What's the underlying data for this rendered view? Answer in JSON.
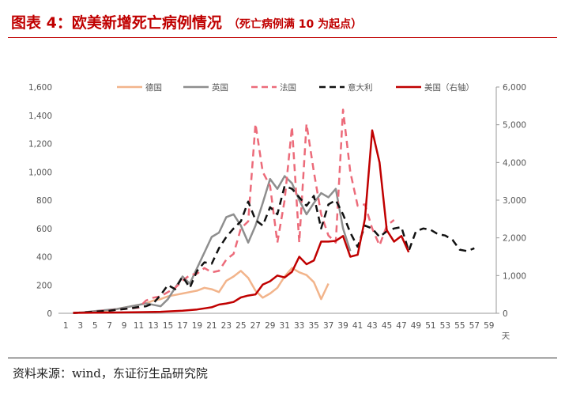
{
  "header": {
    "title": "图表 4：欧美新增死亡病例情况",
    "subtitle": "（死亡病例满 10 为起点）"
  },
  "footer": {
    "source": "资料来源：wind，东证衍生品研究院"
  },
  "chart_data": {
    "type": "line",
    "x_label_unit": "天",
    "x_ticks": [
      1,
      3,
      5,
      7,
      9,
      11,
      13,
      15,
      17,
      19,
      21,
      23,
      25,
      27,
      29,
      31,
      33,
      35,
      37,
      39,
      41,
      43,
      45,
      47,
      49,
      51,
      53,
      55,
      57,
      59
    ],
    "xlim": [
      0,
      60
    ],
    "ylim_left": [
      0,
      1600
    ],
    "ylim_right": [
      0,
      6000
    ],
    "y_ticks_left": [
      "0",
      "200",
      "400",
      "600",
      "800",
      "1,000",
      "1,200",
      "1,400",
      "1,600"
    ],
    "y_ticks_right": [
      "0",
      "1,000",
      "2,000",
      "3,000",
      "4,000",
      "5,000",
      "6,000"
    ],
    "legend_position": "top",
    "series": [
      {
        "name": "德国",
        "axis": "left",
        "color": "#f2b48b",
        "dash": "solid",
        "x": [
          2,
          3,
          4,
          5,
          6,
          7,
          8,
          9,
          10,
          11,
          12,
          13,
          14,
          15,
          16,
          17,
          18,
          19,
          20,
          21,
          22,
          23,
          24,
          25,
          26,
          27,
          28,
          29,
          30,
          31,
          32,
          33,
          34,
          35,
          36,
          37
        ],
        "values": [
          2,
          5,
          8,
          12,
          15,
          20,
          30,
          40,
          50,
          60,
          70,
          90,
          100,
          120,
          130,
          140,
          150,
          160,
          180,
          170,
          150,
          230,
          260,
          300,
          250,
          160,
          110,
          140,
          180,
          260,
          320,
          290,
          270,
          220,
          100,
          210
        ]
      },
      {
        "name": "英国",
        "axis": "left",
        "color": "#8e8e8e",
        "dash": "solid",
        "x": [
          2,
          3,
          4,
          5,
          6,
          7,
          8,
          9,
          10,
          11,
          12,
          13,
          14,
          15,
          16,
          17,
          18,
          19,
          20,
          21,
          22,
          23,
          24,
          25,
          26,
          27,
          28,
          29,
          30,
          31,
          32,
          33,
          34,
          35,
          36,
          37,
          38,
          39,
          40
        ],
        "values": [
          2,
          5,
          10,
          15,
          20,
          25,
          30,
          40,
          50,
          60,
          70,
          60,
          50,
          100,
          180,
          260,
          210,
          320,
          430,
          540,
          570,
          680,
          700,
          620,
          500,
          620,
          780,
          950,
          880,
          970,
          920,
          800,
          700,
          780,
          850,
          820,
          880,
          600,
          440
        ]
      },
      {
        "name": "法国",
        "axis": "left",
        "color": "#ec6b7a",
        "dash": "dashed",
        "x": [
          2,
          3,
          4,
          5,
          6,
          7,
          8,
          9,
          10,
          11,
          12,
          13,
          14,
          15,
          16,
          17,
          18,
          19,
          20,
          21,
          22,
          23,
          24,
          25,
          26,
          27,
          28,
          29,
          30,
          31,
          32,
          33,
          34,
          35,
          36,
          37,
          38,
          39,
          40,
          41,
          42,
          43,
          44,
          45,
          46
        ],
        "values": [
          2,
          5,
          8,
          12,
          18,
          20,
          25,
          30,
          35,
          40,
          90,
          110,
          120,
          150,
          180,
          230,
          270,
          280,
          320,
          290,
          300,
          380,
          420,
          600,
          650,
          1340,
          1000,
          900,
          500,
          800,
          1320,
          500,
          1340,
          1000,
          700,
          550,
          500,
          1440,
          1000,
          760,
          770,
          600,
          480,
          620,
          660
        ]
      },
      {
        "name": "意大利",
        "axis": "left",
        "color": "#111111",
        "dash": "dashed",
        "x": [
          2,
          3,
          4,
          5,
          6,
          7,
          8,
          9,
          10,
          11,
          12,
          13,
          14,
          15,
          16,
          17,
          18,
          19,
          20,
          21,
          22,
          23,
          24,
          25,
          26,
          27,
          28,
          29,
          30,
          31,
          32,
          33,
          34,
          35,
          36,
          37,
          38,
          39,
          40,
          41,
          42,
          43,
          44,
          45,
          46,
          47,
          48,
          49,
          50,
          51,
          52,
          53,
          54,
          55,
          56,
          57
        ],
        "values": [
          2,
          5,
          8,
          12,
          15,
          18,
          25,
          30,
          35,
          45,
          50,
          70,
          130,
          200,
          170,
          260,
          180,
          300,
          360,
          350,
          460,
          540,
          600,
          650,
          790,
          660,
          620,
          750,
          700,
          900,
          880,
          820,
          760,
          830,
          600,
          770,
          800,
          700,
          570,
          470,
          620,
          600,
          540,
          580,
          600,
          610,
          440,
          580,
          600,
          590,
          560,
          550,
          520,
          450,
          440,
          460
        ]
      },
      {
        "name": "美国（右轴）",
        "axis": "right",
        "color": "#c00000",
        "dash": "solid",
        "x": [
          2,
          5,
          8,
          11,
          14,
          17,
          19,
          20,
          21,
          22,
          23,
          24,
          25,
          26,
          27,
          28,
          29,
          30,
          31,
          32,
          33,
          34,
          35,
          36,
          37,
          38,
          39,
          40,
          41,
          42,
          43,
          44,
          45,
          46,
          47,
          48
        ],
        "values": [
          10,
          15,
          20,
          30,
          40,
          70,
          100,
          130,
          160,
          230,
          260,
          300,
          420,
          470,
          500,
          760,
          850,
          1000,
          950,
          1100,
          1500,
          1300,
          1400,
          1900,
          1900,
          1920,
          2050,
          1500,
          1550,
          2500,
          4850,
          4000,
          2200,
          1900,
          2050,
          1620
        ]
      }
    ]
  }
}
